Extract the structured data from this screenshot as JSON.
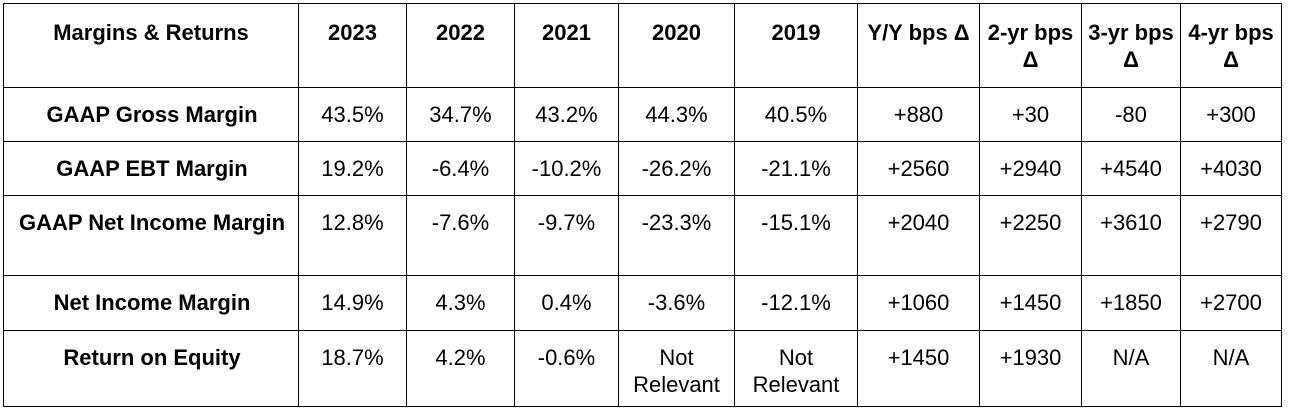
{
  "table": {
    "columns": [
      "Margins & Returns",
      "2023",
      "2022",
      "2021",
      "2020",
      "2019",
      "Y/Y bps Δ",
      "2-yr bps Δ",
      "3-yr bps Δ",
      "4-yr bps Δ"
    ],
    "rows": [
      [
        "GAAP Gross Margin",
        "43.5%",
        "34.7%",
        "43.2%",
        "44.3%",
        "40.5%",
        "+880",
        "+30",
        "-80",
        "+300"
      ],
      [
        "GAAP EBT Margin",
        "19.2%",
        "-6.4%",
        "-10.2%",
        "-26.2%",
        "-21.1%",
        "+2560",
        "+2940",
        "+4540",
        "+4030"
      ],
      [
        "GAAP Net Income Margin",
        "12.8%",
        "-7.6%",
        "-9.7%",
        "-23.3%",
        "-15.1%",
        "+2040",
        "+2250",
        "+3610",
        "+2790"
      ],
      [
        "Net Income Margin",
        "14.9%",
        "4.3%",
        "0.4%",
        "-3.6%",
        "-12.1%",
        "+1060",
        "+1450",
        "+1850",
        "+2700"
      ],
      [
        "Return on Equity",
        "18.7%",
        "4.2%",
        "-0.6%",
        "Not Relevant",
        "Not Relevant",
        "+1450",
        "+1930",
        "N/A",
        "N/A"
      ]
    ]
  }
}
